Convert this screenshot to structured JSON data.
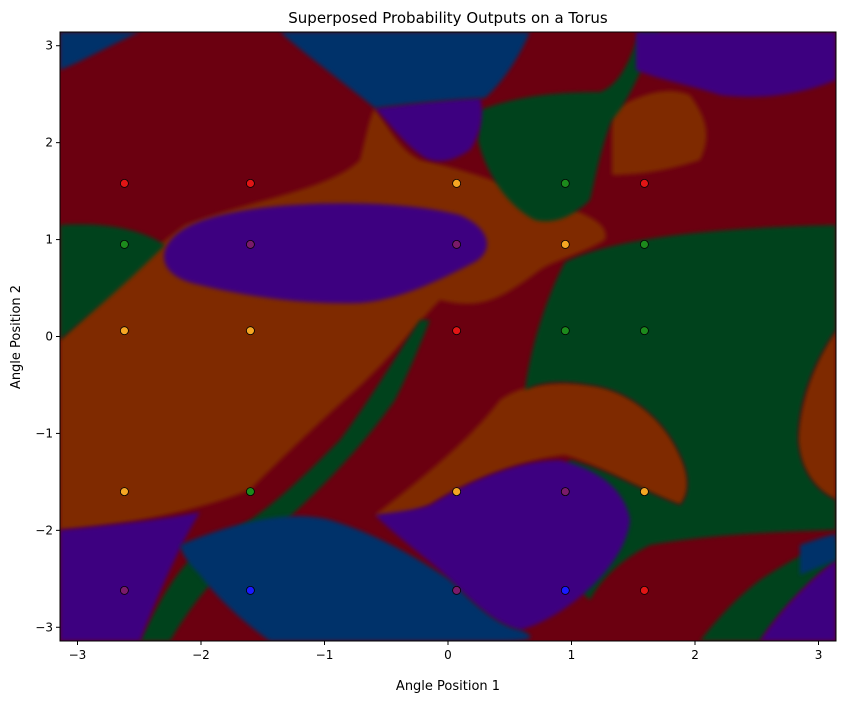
{
  "chart_data": {
    "type": "scatter",
    "title": "Superposed Probability Outputs on a Torus",
    "xlabel": "Angle Position 1",
    "ylabel": "Angle Position 2",
    "xlim": [
      -3.1416,
      3.1416
    ],
    "ylim": [
      -3.1416,
      3.1416
    ],
    "xticks": [
      -3,
      -2,
      -1,
      0,
      1,
      2,
      3
    ],
    "yticks": [
      -3,
      -2,
      -1,
      0,
      1,
      2,
      3
    ],
    "grid": false,
    "background": "decision-region map",
    "region_colors": {
      "dark_red": "#6b0010",
      "orange_brown": "#7f2a04",
      "green": "#00431a",
      "indigo": "#3c0280",
      "navy_blue": "#06306b"
    },
    "points": [
      {
        "x": -2.62,
        "y": 1.58,
        "color": "#e01515"
      },
      {
        "x": -1.6,
        "y": 1.58,
        "color": "#e01515"
      },
      {
        "x": 0.07,
        "y": 1.58,
        "color": "#f5a623"
      },
      {
        "x": 0.95,
        "y": 1.58,
        "color": "#1c8a1c"
      },
      {
        "x": 1.59,
        "y": 1.58,
        "color": "#e01515"
      },
      {
        "x": -2.62,
        "y": 0.95,
        "color": "#1c8a1c"
      },
      {
        "x": -1.6,
        "y": 0.95,
        "color": "#7a1a6a"
      },
      {
        "x": 0.07,
        "y": 0.95,
        "color": "#7a1a6a"
      },
      {
        "x": 0.95,
        "y": 0.95,
        "color": "#f5a623"
      },
      {
        "x": 1.59,
        "y": 0.95,
        "color": "#1c8a1c"
      },
      {
        "x": -2.62,
        "y": 0.06,
        "color": "#f5a623"
      },
      {
        "x": -1.6,
        "y": 0.06,
        "color": "#f5a623"
      },
      {
        "x": 0.07,
        "y": 0.06,
        "color": "#e01515"
      },
      {
        "x": 0.95,
        "y": 0.06,
        "color": "#1c8a1c"
      },
      {
        "x": 1.59,
        "y": 0.06,
        "color": "#1c8a1c"
      },
      {
        "x": -2.62,
        "y": -1.6,
        "color": "#f5a623"
      },
      {
        "x": -1.6,
        "y": -1.6,
        "color": "#1c8a1c"
      },
      {
        "x": 0.07,
        "y": -1.6,
        "color": "#f5a623"
      },
      {
        "x": 0.95,
        "y": -1.6,
        "color": "#7a1a6a"
      },
      {
        "x": 1.59,
        "y": -1.6,
        "color": "#f5a623"
      },
      {
        "x": -2.62,
        "y": -2.62,
        "color": "#7a1a6a"
      },
      {
        "x": -1.6,
        "y": -2.62,
        "color": "#1a1aff"
      },
      {
        "x": 0.07,
        "y": -2.62,
        "color": "#7a1a6a"
      },
      {
        "x": 0.95,
        "y": -2.62,
        "color": "#1a1aff"
      },
      {
        "x": 1.59,
        "y": -2.62,
        "color": "#e01515"
      }
    ]
  }
}
